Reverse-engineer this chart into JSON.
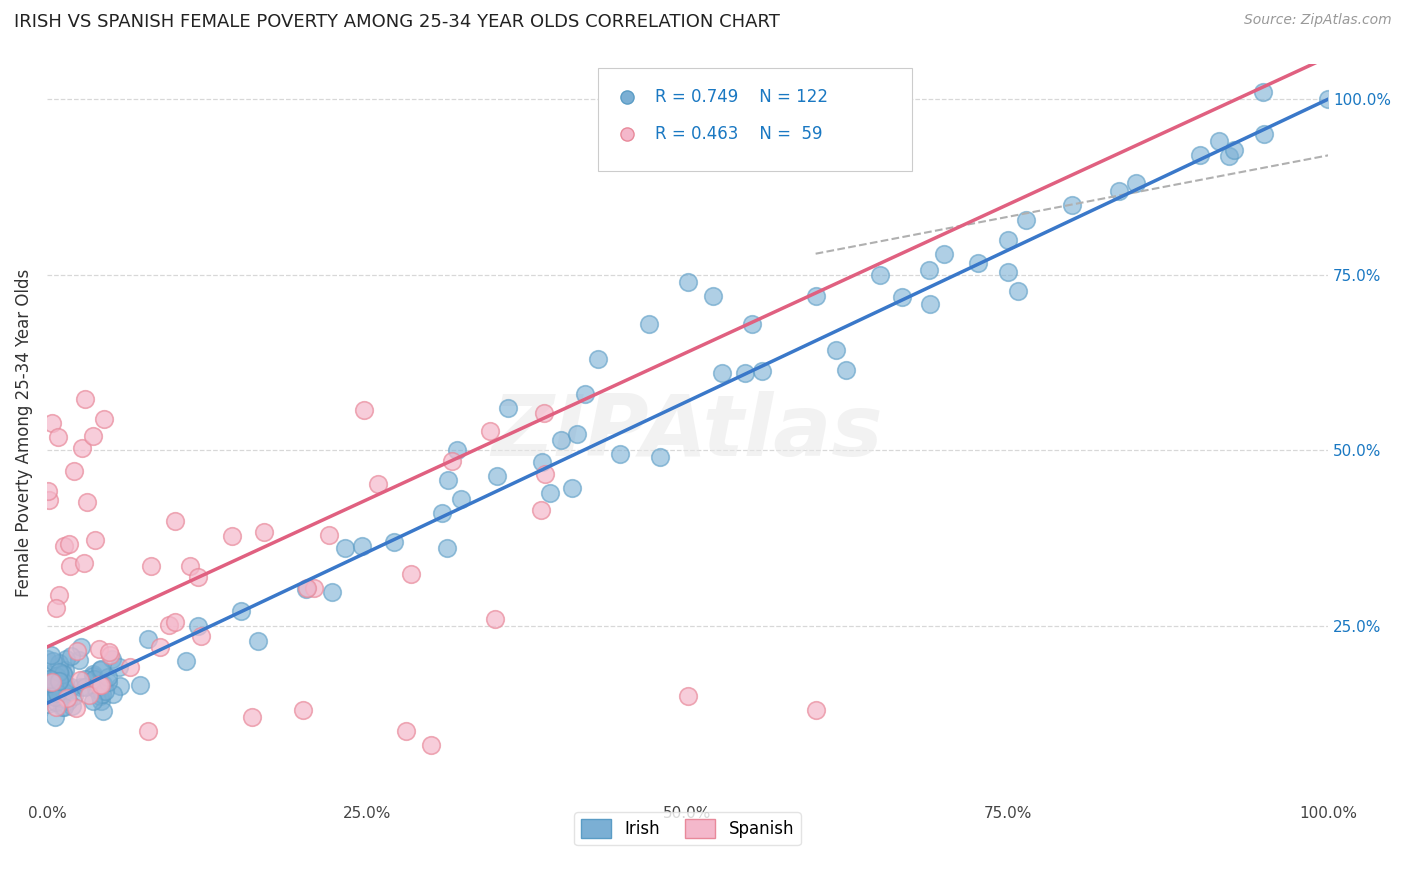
{
  "title": "IRISH VS SPANISH FEMALE POVERTY AMONG 25-34 YEAR OLDS CORRELATION CHART",
  "source": "Source: ZipAtlas.com",
  "ylabel": "Female Poverty Among 25-34 Year Olds",
  "xlim": [
    0.0,
    1.0
  ],
  "ylim": [
    0.0,
    1.05
  ],
  "xtick_labels": [
    "0.0%",
    "25.0%",
    "50.0%",
    "75.0%",
    "100.0%"
  ],
  "xtick_vals": [
    0.0,
    0.25,
    0.5,
    0.75,
    1.0
  ],
  "ytick_labels": [
    "25.0%",
    "50.0%",
    "75.0%",
    "100.0%"
  ],
  "ytick_vals": [
    0.25,
    0.5,
    0.75,
    1.0
  ],
  "irish_color": "#7bafd4",
  "irish_edge": "#5a9cc5",
  "spanish_color": "#f4b8cb",
  "spanish_edge": "#e8899a",
  "irish_R": 0.749,
  "irish_N": 122,
  "spanish_R": 0.463,
  "spanish_N": 59,
  "legend_color": "#1a78c2",
  "irish_line_color": "#3a78c9",
  "spanish_line_color": "#e06080",
  "dash_color": "#b0b0b0",
  "watermark_text": "ZIPAtlas",
  "watermark_color": "#e8e8e8",
  "background_color": "#ffffff",
  "grid_color": "#d8d8d8"
}
